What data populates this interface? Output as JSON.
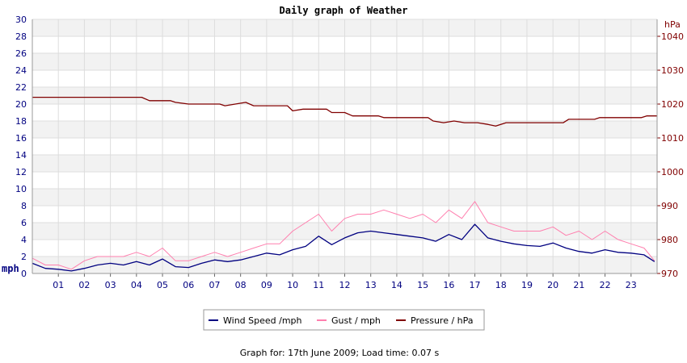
{
  "chart_data": {
    "type": "line",
    "title": "Daily graph of Weather",
    "left_axis": {
      "unit_label": "mph",
      "ylim": [
        0,
        30
      ],
      "ticks": [
        0,
        2,
        4,
        6,
        8,
        10,
        12,
        14,
        16,
        18,
        20,
        22,
        24,
        26,
        28,
        30
      ]
    },
    "right_axis": {
      "unit_label": "hPa",
      "ylim": [
        970,
        1045
      ],
      "ticks": [
        970,
        980,
        990,
        1000,
        1010,
        1020,
        1030,
        1040
      ]
    },
    "x_axis": {
      "xlim": [
        0,
        24
      ],
      "ticks": [
        "01",
        "02",
        "03",
        "04",
        "05",
        "06",
        "07",
        "08",
        "09",
        "10",
        "11",
        "12",
        "13",
        "14",
        "15",
        "16",
        "17",
        "18",
        "19",
        "20",
        "21",
        "22",
        "23"
      ]
    },
    "grid": true,
    "legend_position": "bottom-center",
    "series": [
      {
        "name": "Wind Speed /mph",
        "color": "#000080",
        "axis": "left",
        "points": [
          [
            0,
            1.2
          ],
          [
            0.5,
            0.6
          ],
          [
            1.0,
            0.5
          ],
          [
            1.5,
            0.3
          ],
          [
            2.0,
            0.6
          ],
          [
            2.5,
            1.0
          ],
          [
            3.0,
            1.2
          ],
          [
            3.5,
            1.0
          ],
          [
            4.0,
            1.4
          ],
          [
            4.5,
            1.0
          ],
          [
            5.0,
            1.7
          ],
          [
            5.5,
            0.8
          ],
          [
            6.0,
            0.7
          ],
          [
            6.5,
            1.2
          ],
          [
            7.0,
            1.6
          ],
          [
            7.5,
            1.4
          ],
          [
            8.0,
            1.6
          ],
          [
            8.5,
            2.0
          ],
          [
            9.0,
            2.4
          ],
          [
            9.5,
            2.2
          ],
          [
            10.0,
            2.8
          ],
          [
            10.5,
            3.2
          ],
          [
            11.0,
            4.4
          ],
          [
            11.5,
            3.4
          ],
          [
            12.0,
            4.2
          ],
          [
            12.5,
            4.8
          ],
          [
            13.0,
            5.0
          ],
          [
            13.5,
            4.8
          ],
          [
            14.0,
            4.6
          ],
          [
            14.5,
            4.4
          ],
          [
            15.0,
            4.2
          ],
          [
            15.5,
            3.8
          ],
          [
            16.0,
            4.6
          ],
          [
            16.5,
            4.0
          ],
          [
            17.0,
            5.8
          ],
          [
            17.5,
            4.2
          ],
          [
            18.0,
            3.8
          ],
          [
            18.5,
            3.5
          ],
          [
            19.0,
            3.3
          ],
          [
            19.5,
            3.2
          ],
          [
            20.0,
            3.6
          ],
          [
            20.5,
            3.0
          ],
          [
            21.0,
            2.6
          ],
          [
            21.5,
            2.4
          ],
          [
            22.0,
            2.8
          ],
          [
            22.5,
            2.5
          ],
          [
            23.0,
            2.4
          ],
          [
            23.5,
            2.2
          ],
          [
            23.9,
            1.4
          ]
        ]
      },
      {
        "name": "Gust / mph",
        "color": "#ff7fae",
        "axis": "left",
        "points": [
          [
            0,
            1.8
          ],
          [
            0.5,
            1.0
          ],
          [
            1.0,
            1.0
          ],
          [
            1.5,
            0.5
          ],
          [
            2.0,
            1.5
          ],
          [
            2.5,
            2.0
          ],
          [
            3.0,
            2.0
          ],
          [
            3.5,
            2.0
          ],
          [
            4.0,
            2.5
          ],
          [
            4.5,
            2.0
          ],
          [
            5.0,
            3.0
          ],
          [
            5.5,
            1.5
          ],
          [
            6.0,
            1.5
          ],
          [
            6.5,
            2.0
          ],
          [
            7.0,
            2.5
          ],
          [
            7.5,
            2.0
          ],
          [
            8.0,
            2.5
          ],
          [
            8.5,
            3.0
          ],
          [
            9.0,
            3.5
          ],
          [
            9.5,
            3.5
          ],
          [
            10.0,
            5.0
          ],
          [
            10.5,
            6.0
          ],
          [
            11.0,
            7.0
          ],
          [
            11.5,
            5.0
          ],
          [
            12.0,
            6.5
          ],
          [
            12.5,
            7.0
          ],
          [
            13.0,
            7.0
          ],
          [
            13.5,
            7.5
          ],
          [
            14.0,
            7.0
          ],
          [
            14.5,
            6.5
          ],
          [
            15.0,
            7.0
          ],
          [
            15.5,
            6.0
          ],
          [
            16.0,
            7.5
          ],
          [
            16.5,
            6.5
          ],
          [
            17.0,
            8.5
          ],
          [
            17.5,
            6.0
          ],
          [
            18.0,
            5.5
          ],
          [
            18.5,
            5.0
          ],
          [
            19.0,
            5.0
          ],
          [
            19.5,
            5.0
          ],
          [
            20.0,
            5.5
          ],
          [
            20.5,
            4.5
          ],
          [
            21.0,
            5.0
          ],
          [
            21.5,
            4.0
          ],
          [
            22.0,
            5.0
          ],
          [
            22.5,
            4.0
          ],
          [
            23.0,
            3.5
          ],
          [
            23.5,
            3.0
          ],
          [
            23.9,
            1.5
          ]
        ]
      },
      {
        "name": "Pressure / hPa",
        "color": "#800000",
        "axis": "right",
        "points": [
          [
            0,
            1022
          ],
          [
            4.2,
            1022
          ],
          [
            4.5,
            1021
          ],
          [
            5.3,
            1021
          ],
          [
            5.5,
            1020.5
          ],
          [
            6.0,
            1020
          ],
          [
            7.2,
            1020
          ],
          [
            7.4,
            1019.5
          ],
          [
            7.8,
            1020
          ],
          [
            8.2,
            1020.5
          ],
          [
            8.5,
            1019.5
          ],
          [
            9.8,
            1019.5
          ],
          [
            10.0,
            1018
          ],
          [
            10.4,
            1018.5
          ],
          [
            11.3,
            1018.5
          ],
          [
            11.5,
            1017.5
          ],
          [
            12.0,
            1017.5
          ],
          [
            12.3,
            1016.5
          ],
          [
            13.3,
            1016.5
          ],
          [
            13.5,
            1016
          ],
          [
            15.2,
            1016
          ],
          [
            15.4,
            1015
          ],
          [
            15.8,
            1014.5
          ],
          [
            16.2,
            1015
          ],
          [
            16.6,
            1014.5
          ],
          [
            17.1,
            1014.5
          ],
          [
            17.5,
            1014
          ],
          [
            17.8,
            1013.5
          ],
          [
            18.2,
            1014.5
          ],
          [
            20.4,
            1014.5
          ],
          [
            20.6,
            1015.5
          ],
          [
            21.6,
            1015.5
          ],
          [
            21.8,
            1016
          ],
          [
            23.4,
            1016
          ],
          [
            23.6,
            1016.5
          ],
          [
            24.0,
            1016.5
          ]
        ]
      }
    ]
  },
  "footer": {
    "caption": "Graph for: 17th June 2009; Load time: 0.07 s"
  }
}
